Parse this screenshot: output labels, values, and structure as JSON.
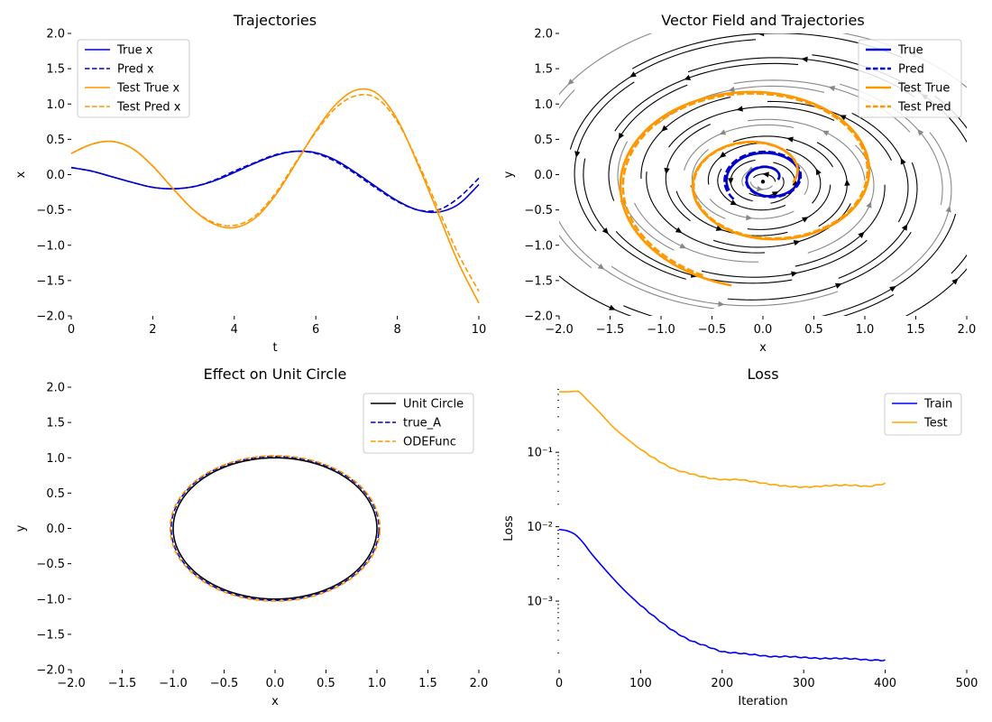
{
  "chart_data": [
    {
      "type": "line",
      "title": "Trajectories",
      "xlabel": "t",
      "ylabel": "x",
      "xlim": [
        0,
        10
      ],
      "ylim": [
        -2.0,
        2.0
      ],
      "xticks": [
        0,
        2,
        4,
        6,
        8,
        10
      ],
      "xtick_labels": [
        "0",
        "2",
        "4",
        "6",
        "8",
        "10"
      ],
      "yticks": [
        -2.0,
        -1.5,
        -1.0,
        -0.5,
        0.0,
        0.5,
        1.0,
        1.5,
        2.0
      ],
      "ytick_labels": [
        "−2.0",
        "−1.5",
        "−1.0",
        "−0.5",
        "0.0",
        "0.5",
        "1.0",
        "1.5",
        "2.0"
      ],
      "legend_position": "top-left",
      "series": [
        {
          "name": "True x",
          "color": "#0000cd",
          "style": "solid",
          "x": [
            0,
            0.5,
            1,
            1.5,
            2,
            2.5,
            3,
            3.5,
            4,
            4.5,
            5,
            5.5,
            6,
            6.5,
            7,
            7.5,
            8,
            8.5,
            9,
            9.5,
            10
          ],
          "y": [
            0.1,
            0.05,
            -0.03,
            -0.11,
            -0.18,
            -0.2,
            -0.17,
            -0.09,
            0.03,
            0.16,
            0.27,
            0.33,
            0.31,
            0.2,
            0.02,
            -0.18,
            -0.37,
            -0.5,
            -0.53,
            -0.42,
            -0.14
          ]
        },
        {
          "name": "Pred x",
          "color": "#0000cd",
          "style": "dashed",
          "x": [
            0,
            0.5,
            1,
            1.5,
            2,
            2.5,
            3,
            3.5,
            4,
            4.5,
            5,
            5.5,
            6,
            6.5,
            7,
            7.5,
            8,
            8.5,
            9,
            9.5,
            10
          ],
          "y": [
            0.1,
            0.05,
            -0.03,
            -0.11,
            -0.18,
            -0.2,
            -0.17,
            -0.08,
            0.05,
            0.17,
            0.28,
            0.33,
            0.3,
            0.18,
            0.0,
            -0.2,
            -0.38,
            -0.5,
            -0.5,
            -0.33,
            -0.05
          ]
        },
        {
          "name": "Test True x",
          "color": "#ff9800",
          "style": "solid",
          "x": [
            0,
            0.5,
            1,
            1.5,
            2,
            2.5,
            3,
            3.5,
            4,
            4.5,
            5,
            5.5,
            6,
            6.5,
            7,
            7.5,
            8,
            8.5,
            9,
            9.5,
            10
          ],
          "y": [
            0.3,
            0.43,
            0.47,
            0.37,
            0.12,
            -0.2,
            -0.5,
            -0.7,
            -0.75,
            -0.62,
            -0.3,
            0.15,
            0.62,
            1.0,
            1.2,
            1.15,
            0.78,
            0.15,
            -0.55,
            -1.25,
            -1.82
          ]
        },
        {
          "name": "Test Pred x",
          "color": "#ff9800",
          "style": "dashed",
          "x": [
            0,
            0.5,
            1,
            1.5,
            2,
            2.5,
            3,
            3.5,
            4,
            4.5,
            5,
            5.5,
            6,
            6.5,
            7,
            7.5,
            8,
            8.5,
            9,
            9.5,
            10
          ],
          "y": [
            0.3,
            0.43,
            0.47,
            0.37,
            0.12,
            -0.2,
            -0.5,
            -0.68,
            -0.72,
            -0.59,
            -0.27,
            0.17,
            0.6,
            0.95,
            1.12,
            1.08,
            0.75,
            0.18,
            -0.48,
            -1.13,
            -1.65
          ]
        }
      ]
    },
    {
      "type": "line",
      "title": "Vector Field and Trajectories",
      "xlabel": "x",
      "ylabel": "y",
      "xlim": [
        -2.0,
        2.0
      ],
      "ylim": [
        -2.0,
        2.0
      ],
      "xticks": [
        -2.0,
        -1.5,
        -1.0,
        -0.5,
        0.0,
        0.5,
        1.0,
        1.5,
        2.0
      ],
      "xtick_labels": [
        "−2.0",
        "−1.5",
        "−1.0",
        "−0.5",
        "0.0",
        "0.5",
        "1.0",
        "1.5",
        "2.0"
      ],
      "yticks": [
        -2.0,
        -1.5,
        -1.0,
        -0.5,
        0.0,
        0.5,
        1.0,
        1.5,
        2.0
      ],
      "ytick_labels": [
        "−2.0",
        "−1.5",
        "−1.0",
        "−0.5",
        "0.0",
        "0.5",
        "1.0",
        "1.5",
        "2.0"
      ],
      "legend_position": "top-right",
      "vector_field": {
        "kind": "rotation-spiral",
        "center": [
          0,
          -0.1
        ],
        "direction": "counter-clockwise"
      },
      "series": [
        {
          "name": "True",
          "color": "#0000cd",
          "style": "solid",
          "spiral": {
            "center": [
              0.05,
              -0.05
            ],
            "r_start": 0.1,
            "r_end": 0.42,
            "turns": 1.6
          }
        },
        {
          "name": "Pred",
          "color": "#0000cd",
          "style": "dashed",
          "spiral": {
            "center": [
              0.05,
              -0.05
            ],
            "r_start": 0.1,
            "r_end": 0.45,
            "turns": 1.65
          }
        },
        {
          "name": "Test True",
          "color": "#ff9800",
          "style": "solid",
          "spiral": {
            "center": [
              0.0,
              -0.05
            ],
            "r_start": 0.3,
            "r_end": 1.55,
            "turns": 1.75
          }
        },
        {
          "name": "Test Pred",
          "color": "#ff9800",
          "style": "dashed",
          "spiral": {
            "center": [
              0.0,
              -0.05
            ],
            "r_start": 0.3,
            "r_end": 1.5,
            "turns": 1.72
          }
        }
      ]
    },
    {
      "type": "line",
      "title": "Effect on Unit Circle",
      "xlabel": "x",
      "ylabel": "y",
      "xlim": [
        -2.0,
        2.0
      ],
      "ylim": [
        -2.0,
        2.0
      ],
      "xticks": [
        -2.0,
        -1.5,
        -1.0,
        -0.5,
        0.0,
        0.5,
        1.0,
        1.5,
        2.0
      ],
      "xtick_labels": [
        "−2.0",
        "−1.5",
        "−1.0",
        "−0.5",
        "0.0",
        "0.5",
        "1.0",
        "1.5",
        "2.0"
      ],
      "yticks": [
        -2.0,
        -1.5,
        -1.0,
        -0.5,
        0.0,
        0.5,
        1.0,
        1.5,
        2.0
      ],
      "ytick_labels": [
        "−2.0",
        "−1.5",
        "−1.0",
        "−0.5",
        "0.0",
        "0.5",
        "1.0",
        "1.5",
        "2.0"
      ],
      "legend_position": "top-right",
      "series": [
        {
          "name": "Unit Circle",
          "color": "#000000",
          "style": "solid",
          "ellipse": {
            "rx": 1.0,
            "ry": 1.0,
            "rot": 0
          }
        },
        {
          "name": "true_A",
          "color": "#0000cd",
          "style": "dashed",
          "ellipse": {
            "rx": 1.02,
            "ry": 1.02,
            "rot": -0.06
          }
        },
        {
          "name": "ODEFunc",
          "color": "#ff9800",
          "style": "dashed",
          "ellipse": {
            "rx": 1.03,
            "ry": 1.03,
            "rot": -0.06
          }
        }
      ]
    },
    {
      "type": "line",
      "title": "Loss",
      "xlabel": "Iteration",
      "ylabel": "Loss",
      "xlim": [
        0,
        500
      ],
      "ylim": [
        0.00012,
        0.75
      ],
      "yscale": "log",
      "xticks": [
        0,
        100,
        200,
        300,
        400,
        500
      ],
      "xtick_labels": [
        "0",
        "100",
        "200",
        "300",
        "400",
        "500"
      ],
      "yticks": [
        0.001,
        0.01,
        0.1
      ],
      "ytick_labels": [
        "10⁻³",
        "10⁻²",
        "10⁻¹"
      ],
      "legend_position": "top-right",
      "series": [
        {
          "name": "Train",
          "color": "#0000ff",
          "style": "solid",
          "x": [
            0,
            10,
            20,
            30,
            40,
            60,
            80,
            100,
            120,
            140,
            160,
            180,
            200,
            220,
            240,
            260,
            280,
            300,
            320,
            340,
            360,
            380,
            400
          ],
          "y": [
            0.0092,
            0.0088,
            0.0078,
            0.006,
            0.0043,
            0.0024,
            0.0014,
            0.00088,
            0.00058,
            0.0004,
            0.0003,
            0.00025,
            0.00021,
            0.0002,
            0.00019,
            0.00018,
            0.00018,
            0.000175,
            0.00017,
            0.00017,
            0.000168,
            0.000162,
            0.00016
          ]
        },
        {
          "name": "Test",
          "color": "#ffa500",
          "style": "solid",
          "x": [
            0,
            10,
            20,
            25,
            35,
            50,
            70,
            100,
            120,
            140,
            160,
            180,
            200,
            220,
            240,
            260,
            280,
            300,
            320,
            340,
            360,
            380,
            400
          ],
          "y": [
            0.65,
            0.65,
            0.66,
            0.64,
            0.5,
            0.34,
            0.2,
            0.11,
            0.079,
            0.06,
            0.052,
            0.046,
            0.043,
            0.043,
            0.04,
            0.037,
            0.035,
            0.034,
            0.035,
            0.036,
            0.036,
            0.035,
            0.038
          ]
        }
      ]
    }
  ]
}
